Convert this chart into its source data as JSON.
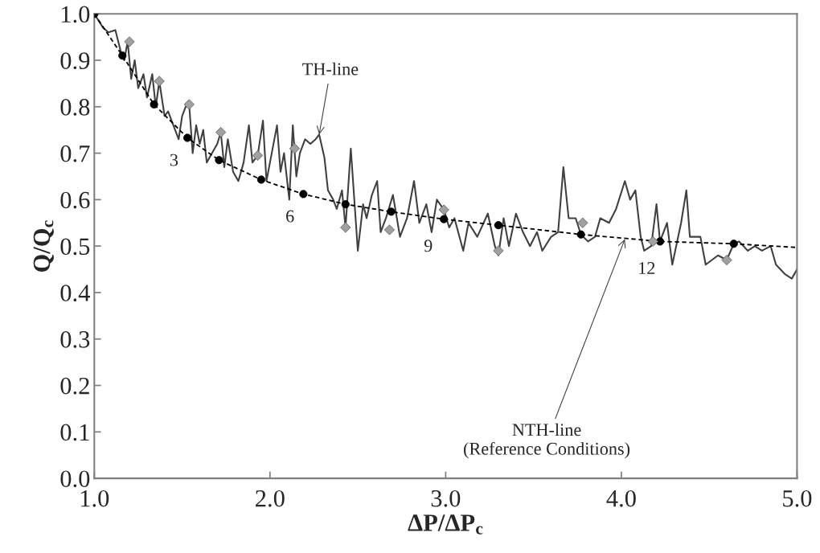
{
  "chart_data": {
    "type": "line",
    "xlabel": "ΔP/ΔP$_{c}$",
    "ylabel": "Q/Q$_{c}$",
    "xlim": [
      1.0,
      5.0
    ],
    "ylim": [
      0.0,
      1.0
    ],
    "xticks": [
      {
        "value": 1,
        "label": "1.0"
      },
      {
        "value": 2,
        "label": "2.0"
      },
      {
        "value": 3,
        "label": "3.0"
      },
      {
        "value": 4,
        "label": "4.0"
      },
      {
        "value": 5,
        "label": "5.0"
      }
    ],
    "yticks": [
      {
        "value": 0,
        "label": "0.0"
      },
      0.1,
      0.2,
      0.3,
      0.4,
      0.5,
      0.6,
      0.7,
      0.8,
      0.9,
      {
        "value": 1,
        "label": "1.0"
      }
    ],
    "grid": false,
    "legend": false,
    "series": [
      {
        "color": "#404040",
        "line_style": "solid",
        "marker": "none",
        "x": [
          1.0,
          1.05,
          1.08,
          1.12,
          1.15,
          1.17,
          1.19,
          1.21,
          1.23,
          1.25,
          1.28,
          1.3,
          1.33,
          1.35,
          1.37,
          1.4,
          1.42,
          1.45,
          1.48,
          1.5,
          1.52,
          1.54,
          1.56,
          1.58,
          1.6,
          1.62,
          1.64,
          1.67,
          1.7,
          1.72,
          1.74,
          1.76,
          1.79,
          1.82,
          1.85,
          1.88,
          1.9,
          1.93,
          1.96,
          1.98,
          2.01,
          2.04,
          2.06,
          2.08,
          2.11,
          2.13,
          2.15,
          2.17,
          2.2,
          2.23,
          2.26,
          2.28,
          2.31,
          2.33,
          2.36,
          2.38,
          2.41,
          2.43,
          2.46,
          2.48,
          2.5,
          2.53,
          2.55,
          2.58,
          2.61,
          2.63,
          2.66,
          2.7,
          2.74,
          2.78,
          2.82,
          2.85,
          2.89,
          2.92,
          2.95,
          2.99,
          3.02,
          3.05,
          3.1,
          3.13,
          3.18,
          3.24,
          3.28,
          3.3,
          3.33,
          3.36,
          3.4,
          3.44,
          3.48,
          3.52,
          3.55,
          3.6,
          3.64,
          3.67,
          3.7,
          3.74,
          3.77,
          3.81,
          3.85,
          3.88,
          3.93,
          3.97,
          4.02,
          4.05,
          4.08,
          4.11,
          4.13,
          4.17,
          4.2,
          4.22,
          4.26,
          4.29,
          4.34,
          4.37,
          4.39,
          4.45,
          4.48,
          4.55,
          4.6,
          4.64,
          4.67,
          4.72,
          4.76,
          4.8,
          4.85,
          4.88,
          4.93,
          4.97,
          5.0
        ],
        "values": [
          1.0,
          0.97,
          0.96,
          0.965,
          0.92,
          0.9,
          0.94,
          0.86,
          0.9,
          0.84,
          0.87,
          0.82,
          0.87,
          0.8,
          0.855,
          0.78,
          0.79,
          0.76,
          0.73,
          0.78,
          0.8,
          0.805,
          0.7,
          0.76,
          0.72,
          0.75,
          0.68,
          0.7,
          0.72,
          0.745,
          0.67,
          0.73,
          0.66,
          0.64,
          0.68,
          0.76,
          0.68,
          0.695,
          0.77,
          0.64,
          0.7,
          0.76,
          0.66,
          0.7,
          0.6,
          0.76,
          0.65,
          0.7,
          0.73,
          0.72,
          0.73,
          0.74,
          0.69,
          0.62,
          0.6,
          0.58,
          0.62,
          0.54,
          0.71,
          0.6,
          0.49,
          0.59,
          0.56,
          0.61,
          0.64,
          0.53,
          0.56,
          0.61,
          0.52,
          0.56,
          0.64,
          0.55,
          0.59,
          0.53,
          0.6,
          0.578,
          0.54,
          0.56,
          0.49,
          0.55,
          0.52,
          0.57,
          0.5,
          0.48,
          0.56,
          0.5,
          0.57,
          0.53,
          0.5,
          0.53,
          0.49,
          0.52,
          0.53,
          0.67,
          0.56,
          0.56,
          0.525,
          0.51,
          0.52,
          0.56,
          0.55,
          0.58,
          0.64,
          0.6,
          0.62,
          0.52,
          0.49,
          0.5,
          0.59,
          0.51,
          0.55,
          0.46,
          0.55,
          0.62,
          0.52,
          0.52,
          0.46,
          0.48,
          0.47,
          0.505,
          0.51,
          0.49,
          0.5,
          0.49,
          0.5,
          0.46,
          0.44,
          0.43,
          0.45
        ]
      },
      {
        "color": "#000000",
        "line_style": "dashed",
        "marker": "none",
        "x": [
          1.0,
          1.16,
          1.34,
          1.53,
          1.71,
          1.95,
          2.19,
          2.43,
          2.69,
          2.99,
          3.3,
          3.77,
          4.22,
          4.64,
          5.0
        ],
        "values": [
          1.0,
          0.91,
          0.805,
          0.733,
          0.685,
          0.643,
          0.612,
          0.59,
          0.574,
          0.558,
          0.545,
          0.525,
          0.51,
          0.505,
          0.497
        ]
      },
      {
        "type": "scatter",
        "color": "#a0a0a0",
        "marker": "diamond",
        "x": [
          1.2,
          1.37,
          1.54,
          1.72,
          1.93,
          2.14,
          2.43,
          2.68,
          2.99,
          3.3,
          3.78,
          4.18,
          4.6
        ],
        "values": [
          0.94,
          0.855,
          0.805,
          0.745,
          0.695,
          0.71,
          0.54,
          0.535,
          0.578,
          0.49,
          0.55,
          0.51,
          0.47
        ]
      },
      {
        "type": "scatter",
        "color": "#000000",
        "marker": "circle",
        "x": [
          1.0,
          1.16,
          1.34,
          1.53,
          1.71,
          1.95,
          2.19,
          2.43,
          2.69,
          2.99,
          3.3,
          3.77,
          4.22,
          4.64
        ],
        "values": [
          1.0,
          0.91,
          0.805,
          0.733,
          0.685,
          0.643,
          0.612,
          0.59,
          0.574,
          0.558,
          0.545,
          0.525,
          0.51,
          0.505
        ]
      }
    ],
    "annotations": [
      {
        "text": "TH-line",
        "x": 2.28,
        "y": 0.74
      },
      {
        "text": "NTH-line\n(Reference Conditions)",
        "x": 4.02,
        "y": 0.515
      },
      {
        "text": "3",
        "x": 1.53,
        "y": 0.733
      },
      {
        "text": "6",
        "x": 2.19,
        "y": 0.612
      },
      {
        "text": "9",
        "x": 2.99,
        "y": 0.558
      },
      {
        "text": "12",
        "x": 4.22,
        "y": 0.51
      }
    ]
  }
}
